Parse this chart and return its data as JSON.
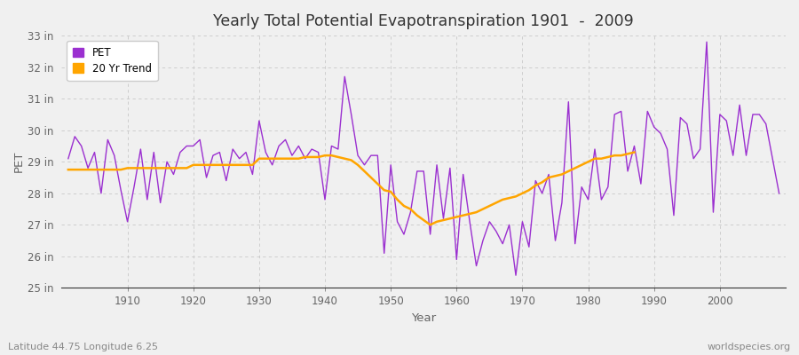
{
  "title": "Yearly Total Potential Evapotranspiration 1901  -  2009",
  "xlabel": "Year",
  "ylabel": "PET",
  "footnote_left": "Latitude 44.75 Longitude 6.25",
  "footnote_right": "worldspecies.org",
  "years": [
    1901,
    1902,
    1903,
    1904,
    1905,
    1906,
    1907,
    1908,
    1909,
    1910,
    1911,
    1912,
    1913,
    1914,
    1915,
    1916,
    1917,
    1918,
    1919,
    1920,
    1921,
    1922,
    1923,
    1924,
    1925,
    1926,
    1927,
    1928,
    1929,
    1930,
    1931,
    1932,
    1933,
    1934,
    1935,
    1936,
    1937,
    1938,
    1939,
    1940,
    1941,
    1942,
    1943,
    1944,
    1945,
    1946,
    1947,
    1948,
    1949,
    1950,
    1951,
    1952,
    1953,
    1954,
    1955,
    1956,
    1957,
    1958,
    1959,
    1960,
    1961,
    1962,
    1963,
    1964,
    1965,
    1966,
    1967,
    1968,
    1969,
    1970,
    1971,
    1972,
    1973,
    1974,
    1975,
    1976,
    1977,
    1978,
    1979,
    1980,
    1981,
    1982,
    1983,
    1984,
    1985,
    1986,
    1987,
    1988,
    1989,
    1990,
    1991,
    1992,
    1993,
    1994,
    1995,
    1996,
    1997,
    1998,
    1999,
    2000,
    2001,
    2002,
    2003,
    2004,
    2005,
    2006,
    2007,
    2008,
    2009
  ],
  "pet": [
    29.1,
    29.8,
    29.5,
    28.8,
    29.3,
    28.0,
    29.7,
    29.2,
    28.1,
    27.1,
    28.2,
    29.4,
    27.8,
    29.3,
    27.7,
    29.0,
    28.6,
    29.3,
    29.5,
    29.5,
    29.7,
    28.5,
    29.2,
    29.3,
    28.4,
    29.4,
    29.1,
    29.3,
    28.6,
    30.3,
    29.3,
    28.9,
    29.5,
    29.7,
    29.2,
    29.5,
    29.1,
    29.4,
    29.3,
    27.8,
    29.5,
    29.4,
    31.7,
    30.5,
    29.2,
    28.9,
    29.2,
    29.2,
    26.1,
    28.9,
    27.1,
    26.7,
    27.4,
    28.7,
    28.7,
    26.7,
    28.9,
    27.2,
    28.8,
    25.9,
    28.6,
    27.1,
    25.7,
    26.5,
    27.1,
    26.8,
    26.4,
    27.0,
    25.4,
    27.1,
    26.3,
    28.4,
    28.0,
    28.6,
    26.5,
    27.7,
    30.9,
    26.4,
    28.2,
    27.8,
    29.4,
    27.8,
    28.2,
    30.5,
    30.6,
    28.7,
    29.5,
    28.3,
    30.6,
    30.1,
    29.9,
    29.4,
    27.3,
    30.4,
    30.2,
    29.1,
    29.4,
    32.8,
    27.4,
    30.5,
    30.3,
    29.2,
    30.8,
    29.2,
    30.5,
    30.5,
    30.2,
    29.1,
    28.0
  ],
  "trend": [
    28.75,
    28.75,
    28.75,
    28.75,
    28.75,
    28.75,
    28.75,
    28.75,
    28.75,
    28.8,
    28.8,
    28.8,
    28.8,
    28.8,
    28.8,
    28.8,
    28.8,
    28.8,
    28.8,
    28.9,
    28.9,
    28.9,
    28.9,
    28.9,
    28.9,
    28.9,
    28.9,
    28.9,
    28.9,
    29.1,
    29.1,
    29.1,
    29.1,
    29.1,
    29.1,
    29.1,
    29.15,
    29.15,
    29.15,
    29.2,
    29.2,
    29.15,
    29.1,
    29.05,
    28.9,
    28.7,
    28.5,
    28.3,
    28.1,
    28.05,
    27.8,
    27.6,
    27.5,
    27.3,
    27.15,
    27.0,
    27.1,
    27.15,
    27.2,
    27.25,
    27.3,
    27.35,
    27.4,
    27.5,
    27.6,
    27.7,
    27.8,
    27.85,
    27.9,
    28.0,
    28.1,
    28.25,
    28.35,
    28.5,
    28.55,
    28.6,
    28.7,
    28.8,
    28.9,
    29.0,
    29.1,
    29.1,
    29.15,
    29.2,
    29.2,
    29.25,
    29.3,
    null,
    null,
    null,
    null,
    null,
    null,
    null,
    null,
    null,
    null,
    null,
    null,
    null,
    null,
    null,
    null,
    null,
    null,
    null,
    null,
    null,
    null
  ],
  "pet_color": "#9b30d0",
  "trend_color": "#ffa500",
  "bg_color": "#f0f0f0",
  "plot_bg_color": "#f0f0f0",
  "grid_color": "#d0d0d0",
  "ylim": [
    25,
    33
  ],
  "yticks": [
    25,
    26,
    27,
    28,
    29,
    30,
    31,
    32,
    33
  ],
  "xticks": [
    1910,
    1920,
    1930,
    1940,
    1950,
    1960,
    1970,
    1980,
    1990,
    2000
  ],
  "xlim": [
    1900,
    2010
  ]
}
